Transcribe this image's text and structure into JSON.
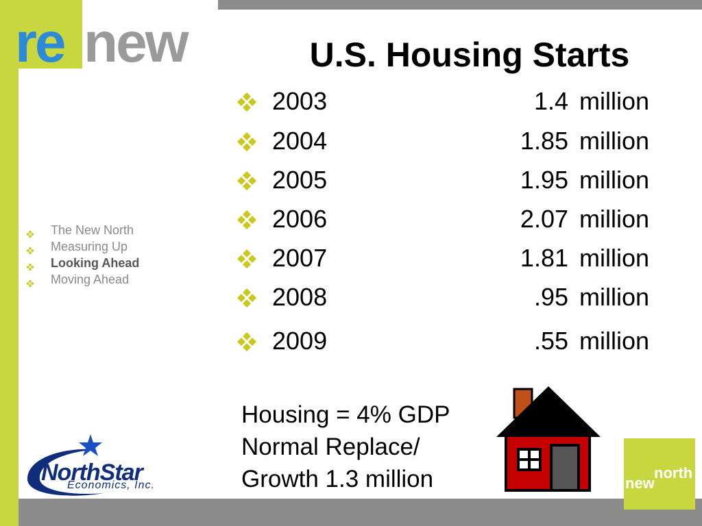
{
  "logo": {
    "part1": "re",
    "part2": "new"
  },
  "title": "U.S. Housing Starts",
  "rows": [
    {
      "year": "2003",
      "value": "1.4",
      "unit": "million"
    },
    {
      "year": "2004",
      "value": "1.85",
      "unit": "million"
    },
    {
      "year": "2005",
      "value": "1.95",
      "unit": "million"
    },
    {
      "year": "2006",
      "value": "2.07",
      "unit": "million"
    },
    {
      "year": "2007",
      "value": "1.81",
      "unit": "million"
    },
    {
      "year": "2008",
      "value": ".95",
      "unit": "million"
    },
    {
      "year": "2009",
      "value": ".55",
      "unit": "million"
    }
  ],
  "note": {
    "line1": "Housing = 4% GDP",
    "line2": "Normal Replace/",
    "line3": "Growth 1.3 million"
  },
  "nav": {
    "items": [
      {
        "label": "The New North",
        "active": false
      },
      {
        "label": "Measuring Up",
        "active": false
      },
      {
        "label": "Looking Ahead",
        "active": true
      },
      {
        "label": "Moving Ahead",
        "active": false
      }
    ]
  },
  "northstar": {
    "name": "NorthStar",
    "sub": "Economics, Inc."
  },
  "newnorth_logo": {
    "part1": "new",
    "part2": "north"
  },
  "colors": {
    "accent_green": "#c8d640",
    "bullet": "#c8c81e",
    "bar_gray": "#8c8c8c",
    "logo_blue": "#2d8ad8",
    "house_red": "#c40000"
  },
  "icons": {
    "bullet": "four-diamond-bullet-icon",
    "house": "house-icon",
    "star": "star-icon"
  }
}
